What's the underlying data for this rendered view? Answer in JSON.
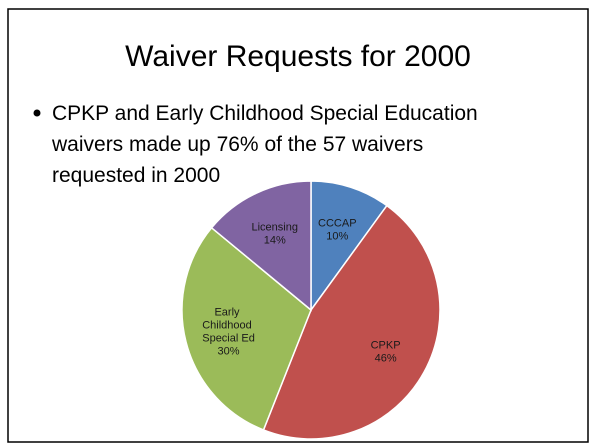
{
  "slide": {
    "title": "Waiver Requests for 2000",
    "bullet_lines": [
      "CPKP and Early Childhood Special Education",
      "waivers made up 76% of the 57 waivers",
      "requested in 2000"
    ]
  },
  "chart_data": {
    "type": "pie",
    "categories": [
      "CCCAP",
      "CPKP",
      "Early Childhood Special Ed",
      "Licensing"
    ],
    "values": [
      10,
      46,
      30,
      14
    ],
    "value_labels": [
      "10%",
      "46%",
      "30%",
      "14%"
    ],
    "colors": [
      "#4f81bd",
      "#c0504d",
      "#9bbb59",
      "#8064a2"
    ]
  }
}
